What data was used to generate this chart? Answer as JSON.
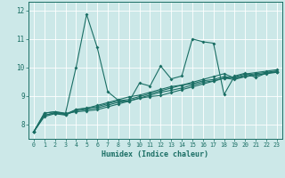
{
  "xlabel": "Humidex (Indice chaleur)",
  "bg_color": "#cce8e8",
  "line_color": "#1a6e64",
  "grid_color": "#ffffff",
  "xlim": [
    -0.5,
    23.5
  ],
  "ylim": [
    7.5,
    12.3
  ],
  "xticks": [
    0,
    1,
    2,
    3,
    4,
    5,
    6,
    7,
    8,
    9,
    10,
    11,
    12,
    13,
    14,
    15,
    16,
    17,
    18,
    19,
    20,
    21,
    22,
    23
  ],
  "yticks": [
    8,
    9,
    10,
    11,
    12
  ],
  "lines": [
    [
      7.75,
      8.4,
      8.45,
      8.4,
      10.0,
      11.85,
      10.7,
      9.15,
      8.85,
      8.8,
      9.45,
      9.35,
      10.05,
      9.6,
      9.7,
      11.0,
      10.9,
      10.85,
      9.05,
      9.7,
      9.8,
      9.65,
      9.8,
      9.85
    ],
    [
      7.75,
      8.4,
      8.45,
      8.38,
      8.45,
      8.48,
      8.52,
      8.62,
      8.72,
      8.82,
      8.92,
      8.98,
      9.02,
      9.12,
      9.22,
      9.32,
      9.42,
      9.52,
      9.62,
      9.67,
      9.77,
      9.82,
      9.87,
      9.92
    ],
    [
      7.75,
      8.32,
      8.42,
      8.37,
      8.52,
      8.57,
      8.67,
      8.77,
      8.87,
      8.97,
      9.03,
      9.13,
      9.23,
      9.33,
      9.38,
      9.48,
      9.58,
      9.68,
      9.78,
      9.63,
      9.73,
      9.78,
      9.83,
      9.88
    ],
    [
      7.75,
      8.28,
      8.38,
      8.33,
      8.53,
      8.58,
      8.63,
      8.73,
      8.83,
      8.88,
      8.98,
      9.08,
      9.18,
      9.28,
      9.38,
      9.43,
      9.53,
      9.58,
      9.68,
      9.63,
      9.68,
      9.73,
      9.78,
      9.83
    ],
    [
      7.75,
      8.33,
      8.4,
      8.35,
      8.48,
      8.53,
      8.58,
      8.68,
      8.78,
      8.83,
      8.93,
      9.03,
      9.13,
      9.2,
      9.28,
      9.38,
      9.48,
      9.53,
      9.63,
      9.58,
      9.68,
      9.73,
      9.8,
      9.85
    ]
  ]
}
